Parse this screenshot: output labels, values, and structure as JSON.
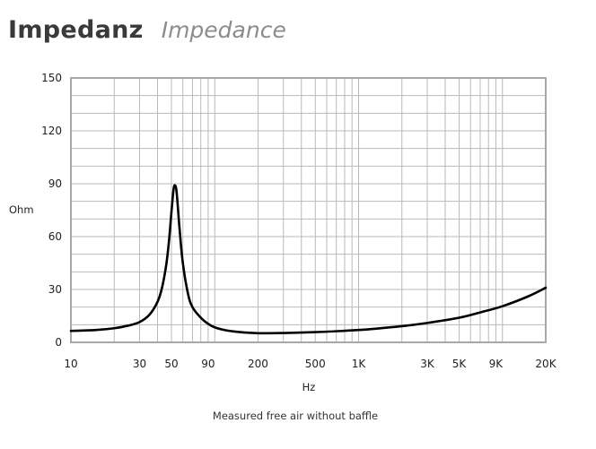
{
  "header": {
    "title": "Impedanz",
    "subtitle": "Impedance"
  },
  "colors": {
    "grid": "#b9b9b9",
    "frame": "#a8a8a8",
    "curve": "#000000"
  },
  "chart_data": {
    "type": "line",
    "title": "Impedanz",
    "subtitle": "Impedance",
    "xlabel": "Hz",
    "ylabel": "Ohm",
    "x_scale": "log",
    "xlim": [
      10,
      20000
    ],
    "ylim": [
      0,
      150
    ],
    "grid": true,
    "legend": "none",
    "caption": "Measured free air without baffle",
    "x_ticks": [
      {
        "value": 10,
        "label": "10"
      },
      {
        "value": 30,
        "label": "30"
      },
      {
        "value": 50,
        "label": "50"
      },
      {
        "value": 90,
        "label": "90"
      },
      {
        "value": 200,
        "label": "200"
      },
      {
        "value": 500,
        "label": "500"
      },
      {
        "value": 1000,
        "label": "1K"
      },
      {
        "value": 3000,
        "label": "3K"
      },
      {
        "value": 5000,
        "label": "5K"
      },
      {
        "value": 9000,
        "label": "9K"
      },
      {
        "value": 20000,
        "label": "20K"
      }
    ],
    "y_ticks": [
      {
        "value": 0,
        "label": "0"
      },
      {
        "value": 30,
        "label": "30"
      },
      {
        "value": 60,
        "label": "60"
      },
      {
        "value": 90,
        "label": "90"
      },
      {
        "value": 120,
        "label": "120"
      },
      {
        "value": 150,
        "label": "150"
      }
    ],
    "series": [
      {
        "x": [
          10,
          15,
          20,
          25,
          30,
          35,
          40,
          43,
          46,
          48,
          50,
          51,
          52,
          53,
          54,
          55,
          57,
          60,
          65,
          70,
          80,
          90,
          100,
          120,
          150,
          200,
          300,
          500,
          1000,
          2000,
          3000,
          5000,
          7000,
          10000,
          15000,
          20000
        ],
        "y": [
          6.5,
          7,
          8,
          9.5,
          11.5,
          15.5,
          23,
          31,
          44,
          57,
          74,
          82,
          88,
          89,
          87,
          80,
          64,
          45,
          28,
          20,
          14,
          10.5,
          8.5,
          6.8,
          5.8,
          5.2,
          5.3,
          5.8,
          7,
          9.2,
          11,
          14,
          17,
          20.5,
          26,
          31
        ]
      }
    ]
  }
}
